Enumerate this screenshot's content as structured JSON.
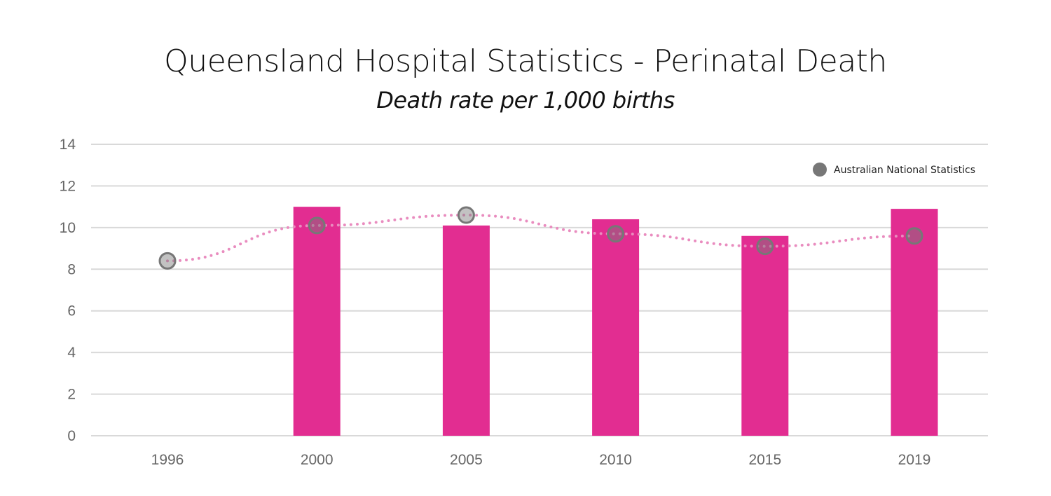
{
  "chart_data": {
    "type": "bar",
    "title": "Queensland Hospital Statistics - Perinatal Death",
    "subtitle": "Death rate per 1,000 births",
    "xlabel": "",
    "ylabel": "",
    "categories": [
      "1996",
      "2000",
      "2005",
      "2010",
      "2015",
      "2019"
    ],
    "ylim": [
      0,
      14
    ],
    "yticks": [
      0,
      2,
      4,
      6,
      8,
      10,
      12,
      14
    ],
    "grid": true,
    "legend_position": "top-right",
    "series": [
      {
        "type": "bar",
        "values": [
          null,
          11.0,
          10.1,
          10.4,
          9.6,
          10.9
        ],
        "color": "#e22d91"
      },
      {
        "type": "line",
        "name": "Australian National Statistics",
        "values": [
          8.4,
          10.1,
          10.6,
          9.7,
          9.1,
          9.6
        ],
        "color": "#777777",
        "line_color": "#e98cbf",
        "line_style": "dotted"
      }
    ]
  }
}
